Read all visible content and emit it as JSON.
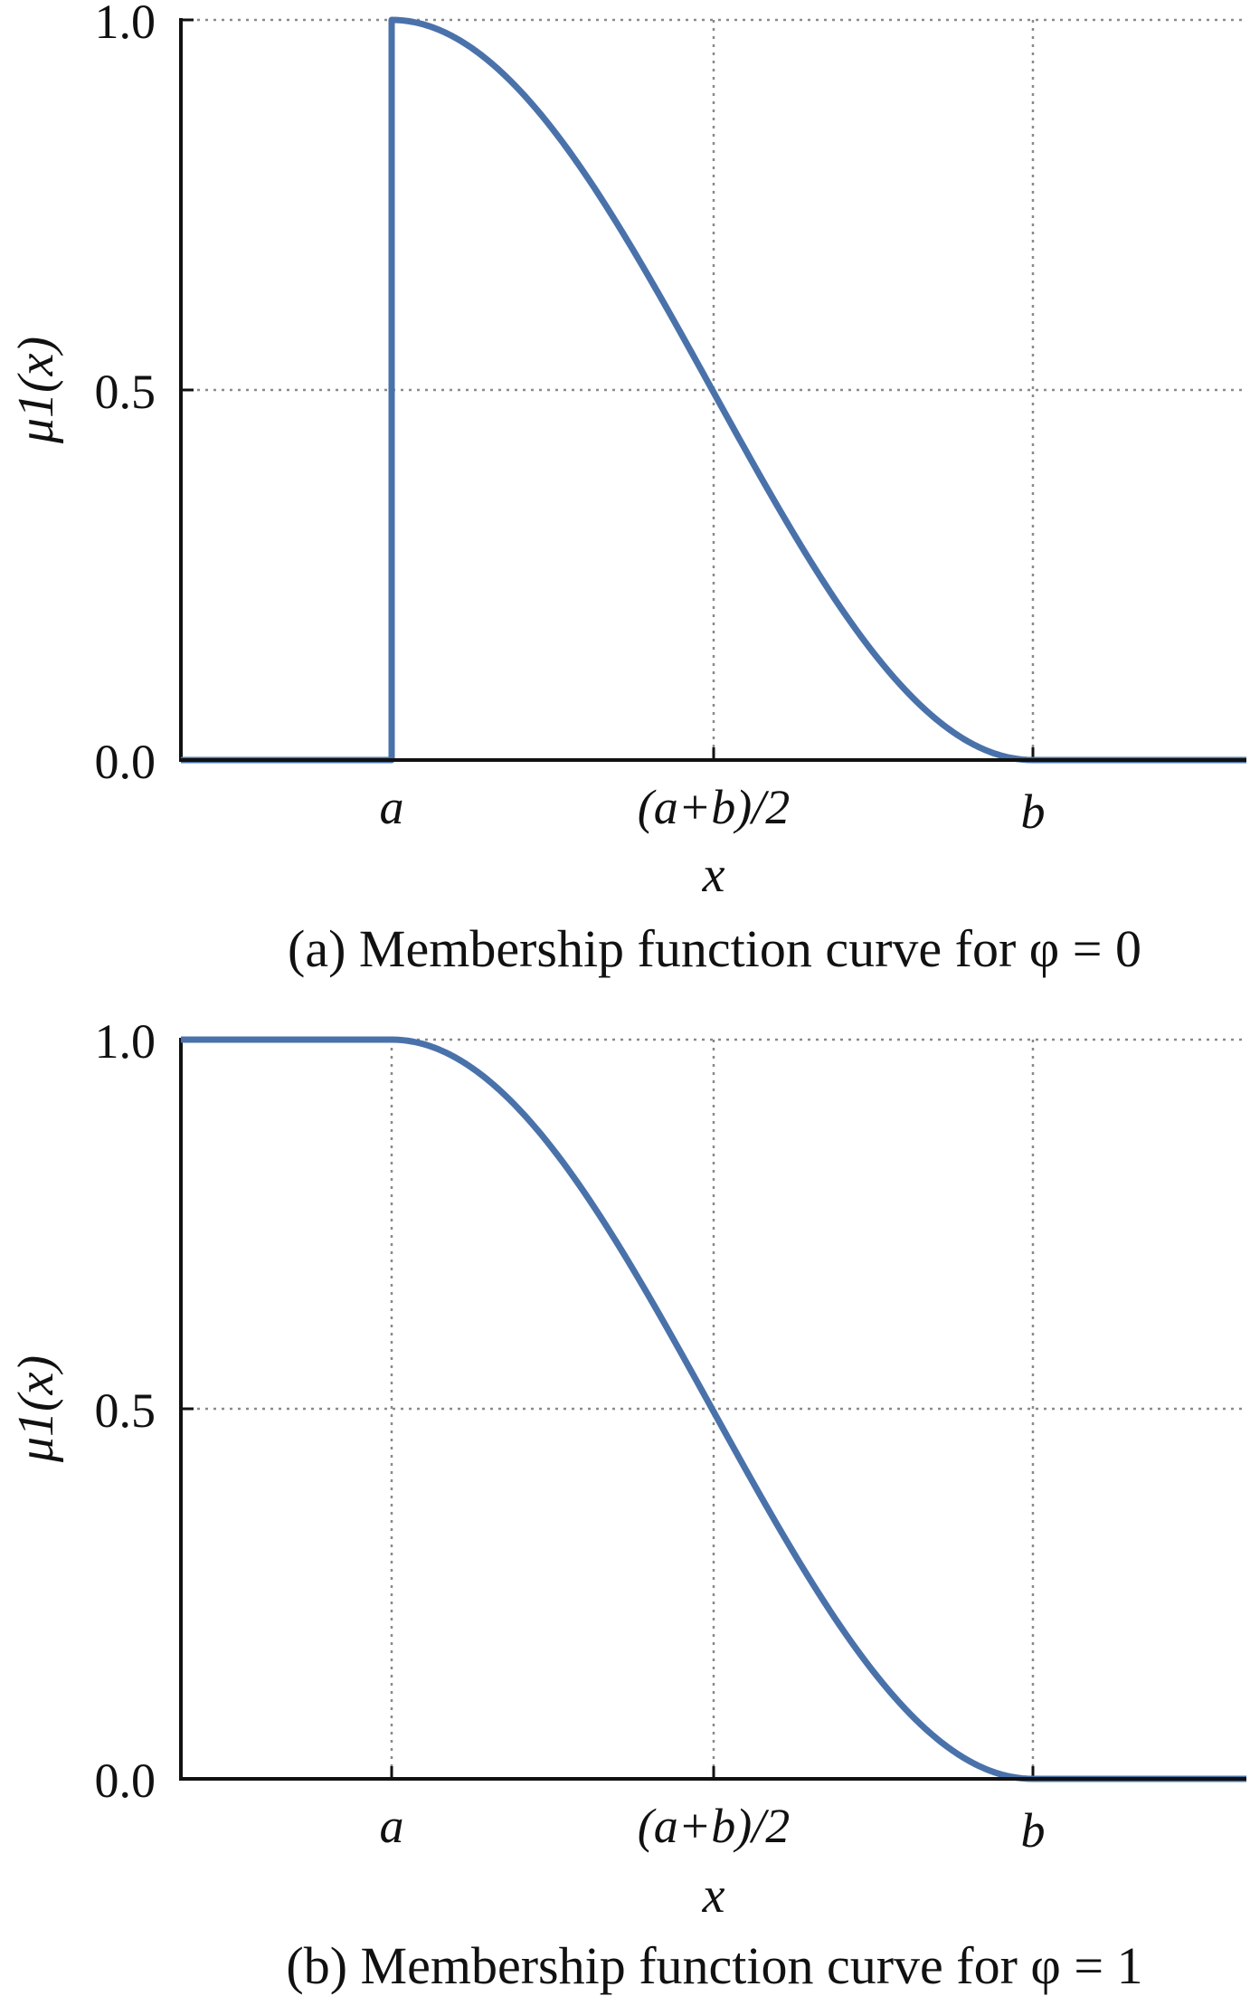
{
  "chart_data": [
    {
      "type": "line",
      "caption": "(a) Membership function curve for φ = 0",
      "xlabel": "x",
      "ylabel": "μ1(x)",
      "ylim": [
        0,
        1
      ],
      "yticks": [
        "0.0",
        "0.5",
        "1.0"
      ],
      "xticks": [
        "a",
        "(a+b)/2",
        "b"
      ],
      "grid": true,
      "series": [
        {
          "color": "#4a72aa",
          "points": [
            {
              "x": "left of a",
              "y": 0.0
            },
            {
              "x": "a",
              "y": 0.0
            },
            {
              "x": "a",
              "y": 1.0
            },
            {
              "x": "(a+b)/2",
              "y": 0.5
            },
            {
              "x": "b",
              "y": 0.0
            },
            {
              "x": "right of b",
              "y": 0.0
            }
          ]
        }
      ]
    },
    {
      "type": "line",
      "caption": "(b) Membership function curve for φ = 1",
      "xlabel": "x",
      "ylabel": "μ1(x)",
      "ylim": [
        0,
        1
      ],
      "yticks": [
        "0.0",
        "0.5",
        "1.0"
      ],
      "xticks": [
        "a",
        "(a+b)/2",
        "b"
      ],
      "grid": true,
      "series": [
        {
          "color": "#4a72aa",
          "points": [
            {
              "x": "left of a",
              "y": 1.0
            },
            {
              "x": "a",
              "y": 1.0
            },
            {
              "x": "(a+b)/2",
              "y": 0.5
            },
            {
              "x": "b",
              "y": 0.0
            },
            {
              "x": "right of b",
              "y": 0.0
            }
          ]
        }
      ]
    }
  ]
}
